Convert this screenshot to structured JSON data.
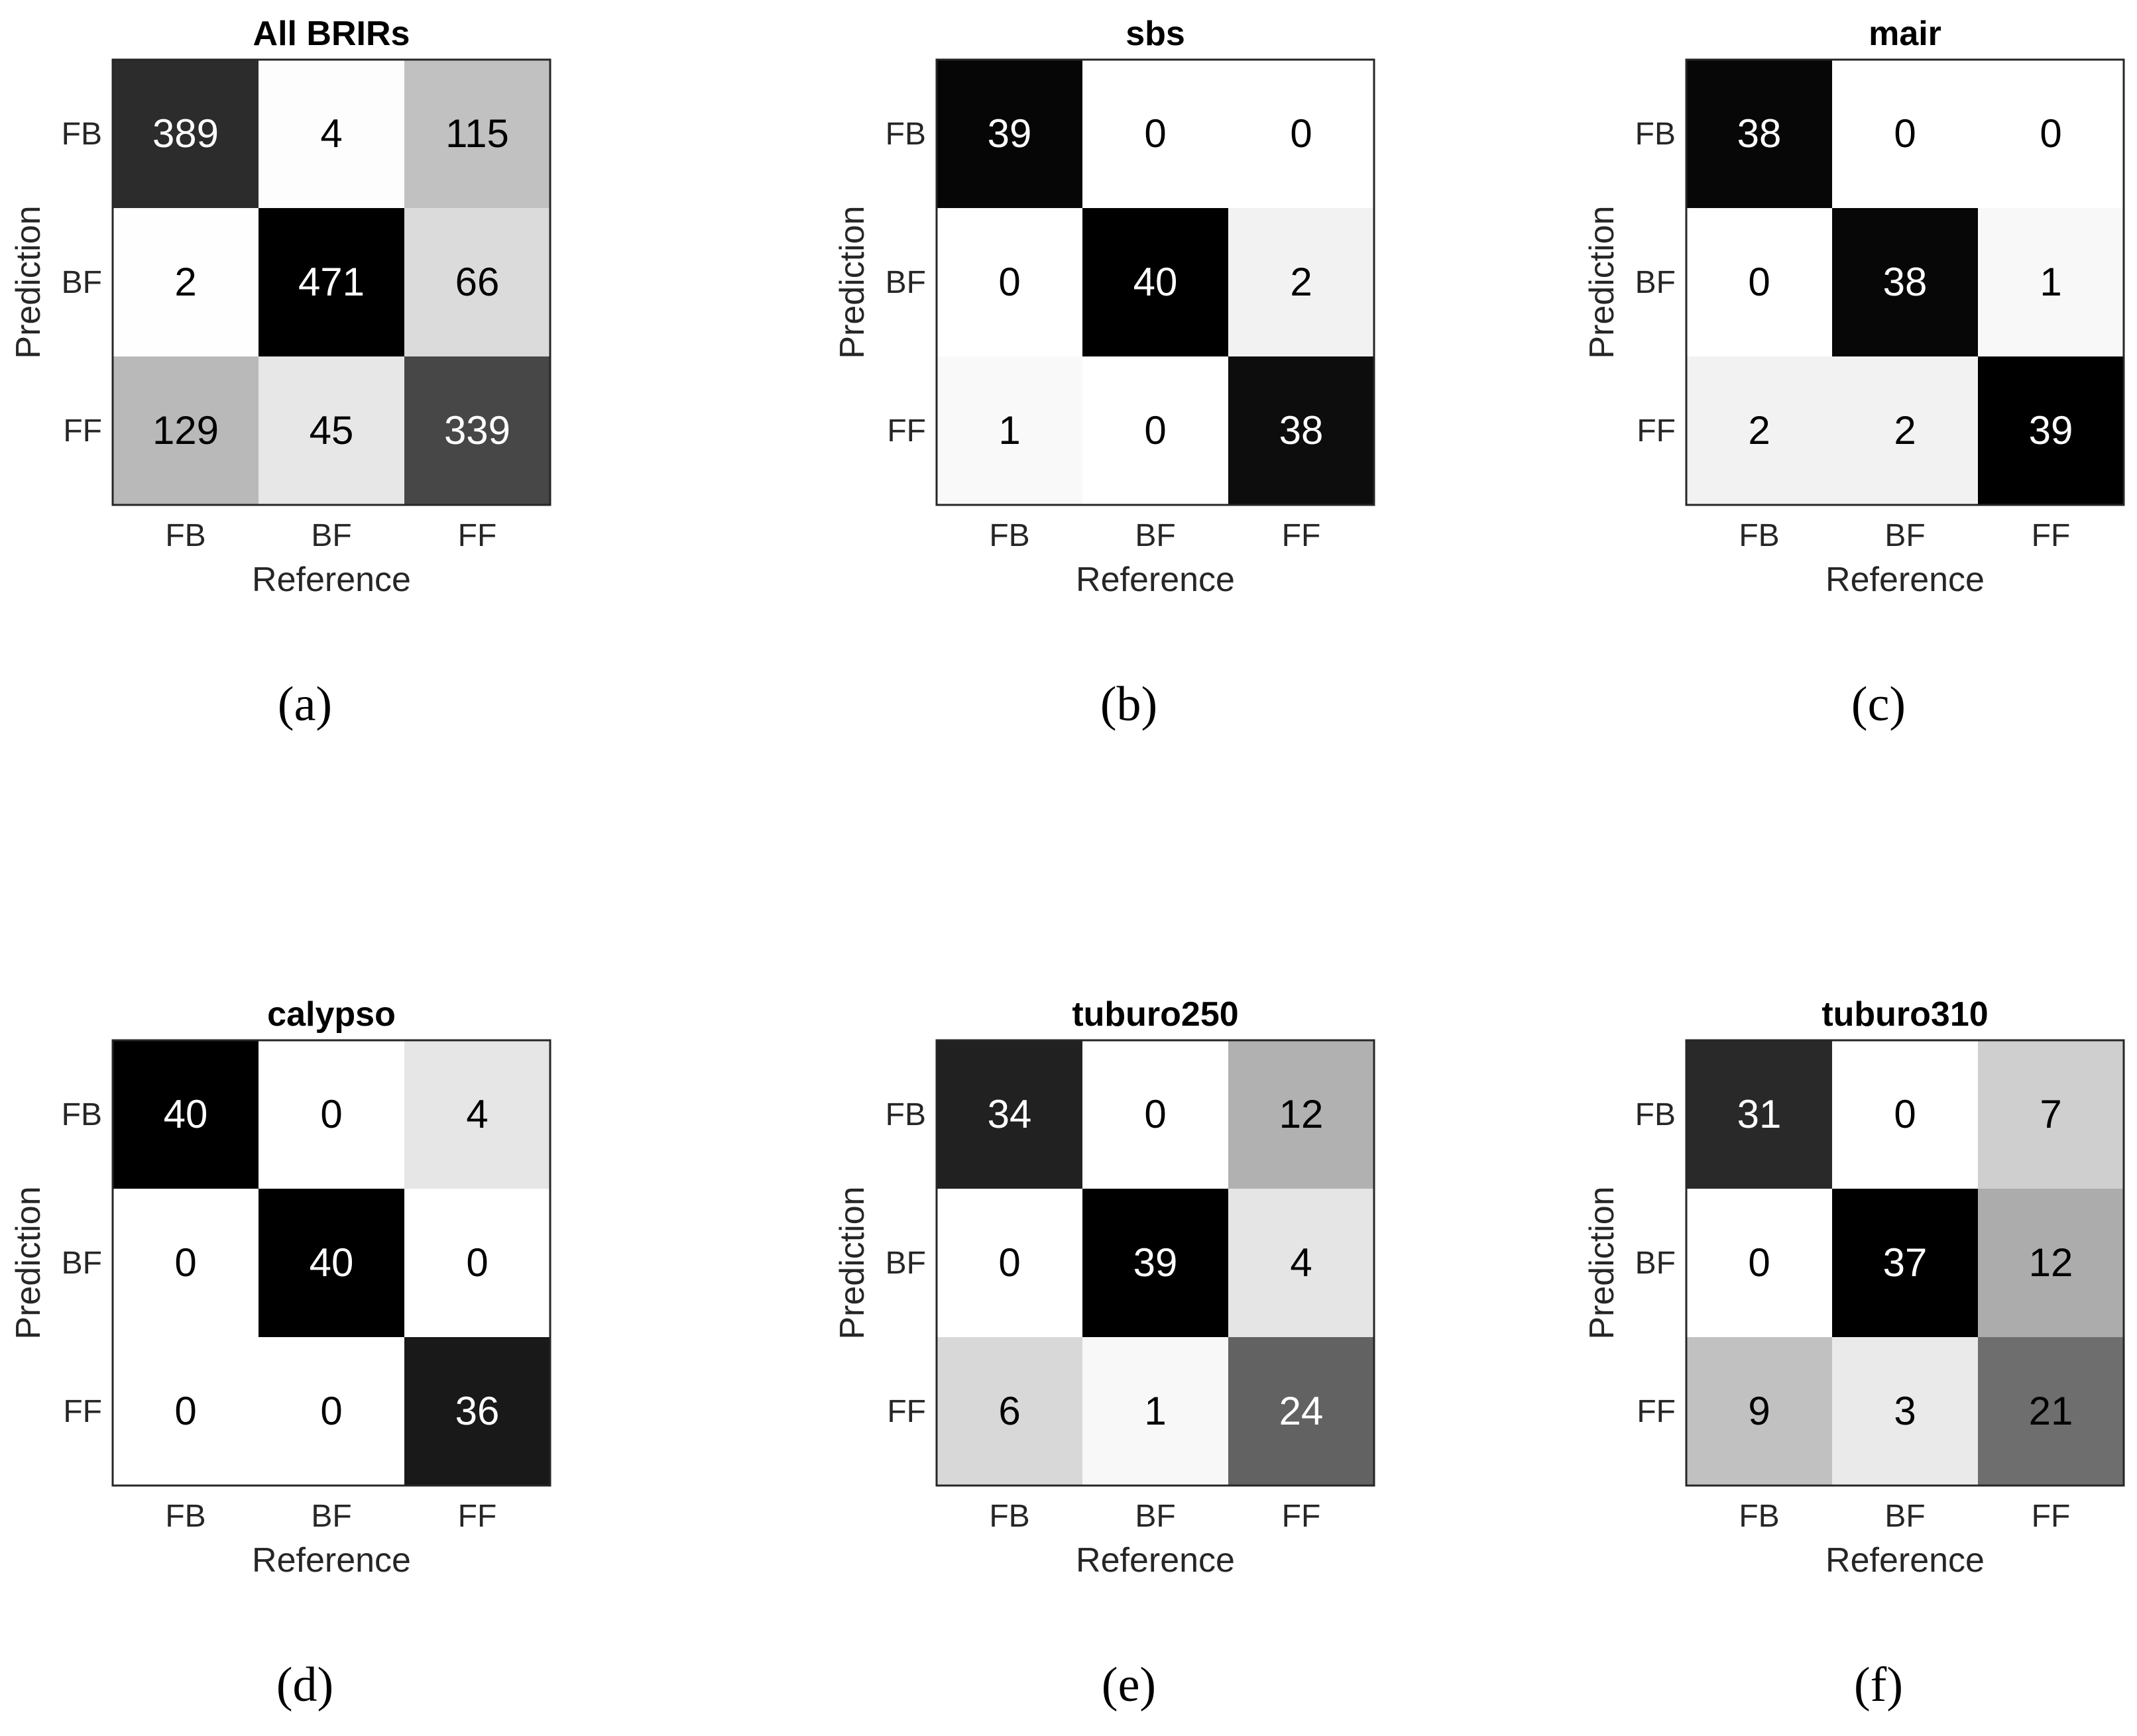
{
  "chart_data": [
    {
      "type": "heatmap",
      "caption": "(a)",
      "title": "All BRIRs",
      "xlabel": "Reference",
      "ylabel": "Prediction",
      "x_categories": [
        "FB",
        "BF",
        "FF"
      ],
      "y_categories": [
        "FB",
        "BF",
        "FF"
      ],
      "values": [
        [
          389,
          4,
          115
        ],
        [
          2,
          471,
          66
        ],
        [
          129,
          45,
          339
        ]
      ],
      "colormap": "gray, higher values darker"
    },
    {
      "type": "heatmap",
      "caption": "(b)",
      "title": "sbs",
      "xlabel": "Reference",
      "ylabel": "Prediction",
      "x_categories": [
        "FB",
        "BF",
        "FF"
      ],
      "y_categories": [
        "FB",
        "BF",
        "FF"
      ],
      "values": [
        [
          39,
          0,
          0
        ],
        [
          0,
          40,
          2
        ],
        [
          1,
          0,
          38
        ]
      ],
      "colormap": "gray, higher values darker"
    },
    {
      "type": "heatmap",
      "caption": "(c)",
      "title": "mair",
      "xlabel": "Reference",
      "ylabel": "Prediction",
      "x_categories": [
        "FB",
        "BF",
        "FF"
      ],
      "y_categories": [
        "FB",
        "BF",
        "FF"
      ],
      "values": [
        [
          38,
          0,
          0
        ],
        [
          0,
          38,
          1
        ],
        [
          2,
          2,
          39
        ]
      ],
      "colormap": "gray, higher values darker"
    },
    {
      "type": "heatmap",
      "caption": "(d)",
      "title": "calypso",
      "xlabel": "Reference",
      "ylabel": "Prediction",
      "x_categories": [
        "FB",
        "BF",
        "FF"
      ],
      "y_categories": [
        "FB",
        "BF",
        "FF"
      ],
      "values": [
        [
          40,
          0,
          4
        ],
        [
          0,
          40,
          0
        ],
        [
          0,
          0,
          36
        ]
      ],
      "colormap": "gray, higher values darker"
    },
    {
      "type": "heatmap",
      "caption": "(e)",
      "title": "tuburo250",
      "xlabel": "Reference",
      "ylabel": "Prediction",
      "x_categories": [
        "FB",
        "BF",
        "FF"
      ],
      "y_categories": [
        "FB",
        "BF",
        "FF"
      ],
      "values": [
        [
          34,
          0,
          12
        ],
        [
          0,
          39,
          4
        ],
        [
          6,
          1,
          24
        ]
      ],
      "colormap": "gray, higher values darker"
    },
    {
      "type": "heatmap",
      "caption": "(f)",
      "title": "tuburo310",
      "xlabel": "Reference",
      "ylabel": "Prediction",
      "x_categories": [
        "FB",
        "BF",
        "FF"
      ],
      "y_categories": [
        "FB",
        "BF",
        "FF"
      ],
      "values": [
        [
          31,
          0,
          7
        ],
        [
          0,
          37,
          12
        ],
        [
          9,
          3,
          21
        ]
      ],
      "colormap": "gray, higher values darker"
    }
  ]
}
